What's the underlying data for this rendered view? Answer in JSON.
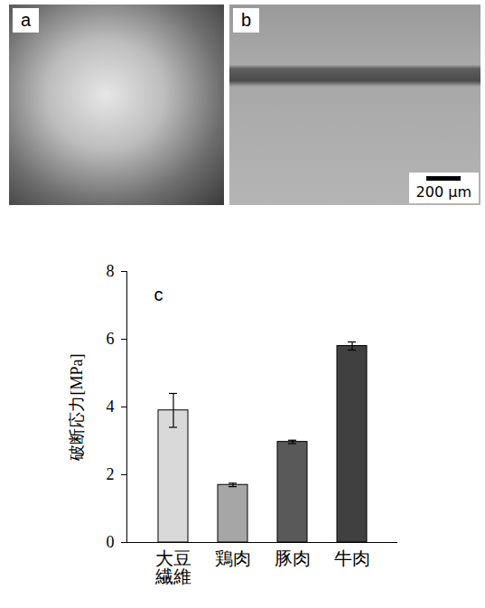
{
  "panels": [
    {
      "label": "a"
    },
    {
      "label": "b",
      "scale_bar": "200 µm"
    }
  ],
  "chart_data": {
    "type": "bar",
    "panel_label": "c",
    "y_label": "破断応力[MPa]",
    "categories": [
      "大豆\n繊維",
      "鶏肉",
      "豚肉",
      "牛肉"
    ],
    "values": [
      3.9,
      1.7,
      2.97,
      5.8
    ],
    "errors": [
      0.5,
      0.05,
      0.05,
      0.12
    ],
    "colors": [
      "#d9d9d9",
      "#a6a6a6",
      "#595959",
      "#404040"
    ],
    "ylim": [
      0,
      8
    ],
    "yticks": [
      0,
      2,
      4,
      6,
      8
    ],
    "grid": false
  }
}
